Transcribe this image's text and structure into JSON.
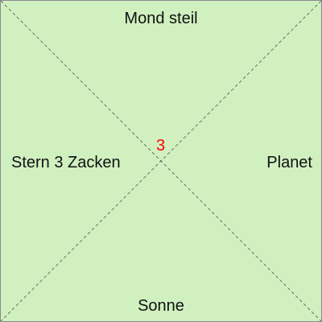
{
  "labels": {
    "top": "Mond steil",
    "left": "Stern 3 Zacken",
    "right": "Planet",
    "bottom": "Sonne"
  },
  "center": {
    "value": "3",
    "color": "#ff0000"
  },
  "colors": {
    "background": "#d0f0c0",
    "diagonal": "#555555",
    "text": "#111111"
  }
}
